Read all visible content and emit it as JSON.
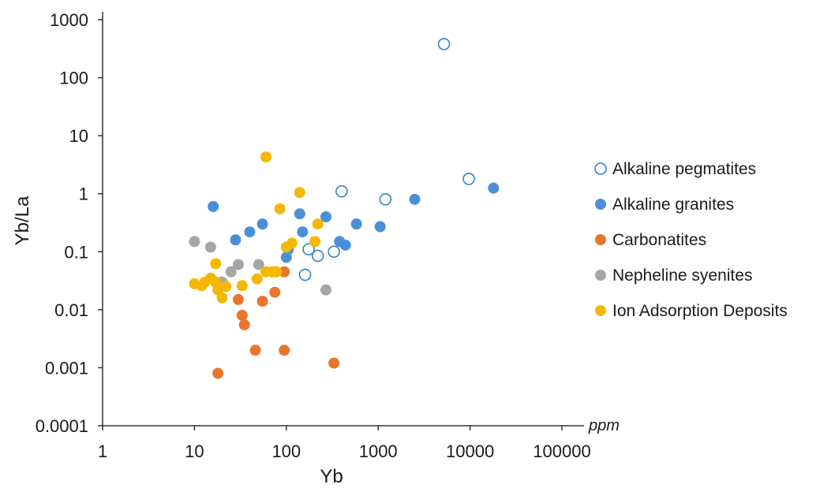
{
  "chart_data": {
    "type": "scatter",
    "xlabel": "Yb",
    "ylabel": "Yb/La",
    "x_unit": "ppm",
    "x_scale": "log",
    "y_scale": "log",
    "xlim": [
      1,
      100000
    ],
    "ylim": [
      0.0001,
      1000
    ],
    "x_ticks": [
      1,
      10,
      100,
      1000,
      10000,
      100000
    ],
    "x_tick_labels": [
      "1",
      "10",
      "100",
      "1000",
      "10000",
      "100000"
    ],
    "y_ticks": [
      0.0001,
      0.001,
      0.01,
      0.1,
      1,
      10,
      100,
      1000
    ],
    "y_tick_labels": [
      "0.0001",
      "0.001",
      "0.01",
      "0.1",
      "1",
      "10",
      "100",
      "1000"
    ],
    "grid": false,
    "legend_position": "right",
    "series": [
      {
        "name": "Alkaline pegmatites",
        "color": "#2e86c1",
        "marker": "open-circle",
        "points": [
          [
            5200,
            380
          ],
          [
            9700,
            1.8
          ],
          [
            1200,
            0.8
          ],
          [
            400,
            1.1
          ],
          [
            175,
            0.11
          ],
          [
            220,
            0.085
          ],
          [
            330,
            0.1
          ],
          [
            160,
            0.04
          ]
        ]
      },
      {
        "name": "Alkaline granites",
        "color": "#4a90d9",
        "marker": "filled-circle",
        "points": [
          [
            18000,
            1.25
          ],
          [
            2500,
            0.8
          ],
          [
            1050,
            0.27
          ],
          [
            580,
            0.3
          ],
          [
            380,
            0.15
          ],
          [
            440,
            0.13
          ],
          [
            270,
            0.4
          ],
          [
            150,
            0.22
          ],
          [
            140,
            0.45
          ],
          [
            100,
            0.08
          ],
          [
            105,
            0.11
          ],
          [
            55,
            0.3
          ],
          [
            40,
            0.22
          ],
          [
            28,
            0.16
          ],
          [
            16,
            0.6
          ]
        ]
      },
      {
        "name": "Carbonatites",
        "color": "#e8762d",
        "marker": "filled-circle",
        "points": [
          [
            18,
            0.0008
          ],
          [
            46,
            0.002
          ],
          [
            95,
            0.002
          ],
          [
            330,
            0.0012
          ],
          [
            33,
            0.008
          ],
          [
            35,
            0.0055
          ],
          [
            30,
            0.015
          ],
          [
            55,
            0.014
          ],
          [
            75,
            0.02
          ],
          [
            95,
            0.045
          ]
        ]
      },
      {
        "name": "Nepheline syenites",
        "color": "#a6a6a6",
        "marker": "filled-circle",
        "points": [
          [
            10,
            0.15
          ],
          [
            15,
            0.12
          ],
          [
            25,
            0.045
          ],
          [
            30,
            0.06
          ],
          [
            50,
            0.06
          ],
          [
            270,
            0.022
          ],
          [
            20,
            0.03
          ]
        ]
      },
      {
        "name": "Ion Adsorption Deposits",
        "color": "#f5b800",
        "marker": "filled-circle",
        "points": [
          [
            60,
            4.3
          ],
          [
            140,
            1.05
          ],
          [
            85,
            0.55
          ],
          [
            220,
            0.3
          ],
          [
            100,
            0.12
          ],
          [
            115,
            0.14
          ],
          [
            205,
            0.15
          ],
          [
            17,
            0.062
          ],
          [
            10,
            0.028
          ],
          [
            12,
            0.026
          ],
          [
            13,
            0.03
          ],
          [
            15,
            0.035
          ],
          [
            17,
            0.03
          ],
          [
            18,
            0.022
          ],
          [
            20,
            0.016
          ],
          [
            22,
            0.025
          ],
          [
            33,
            0.026
          ],
          [
            48,
            0.034
          ],
          [
            60,
            0.045
          ],
          [
            70,
            0.045
          ],
          [
            78,
            0.045
          ]
        ]
      }
    ]
  }
}
